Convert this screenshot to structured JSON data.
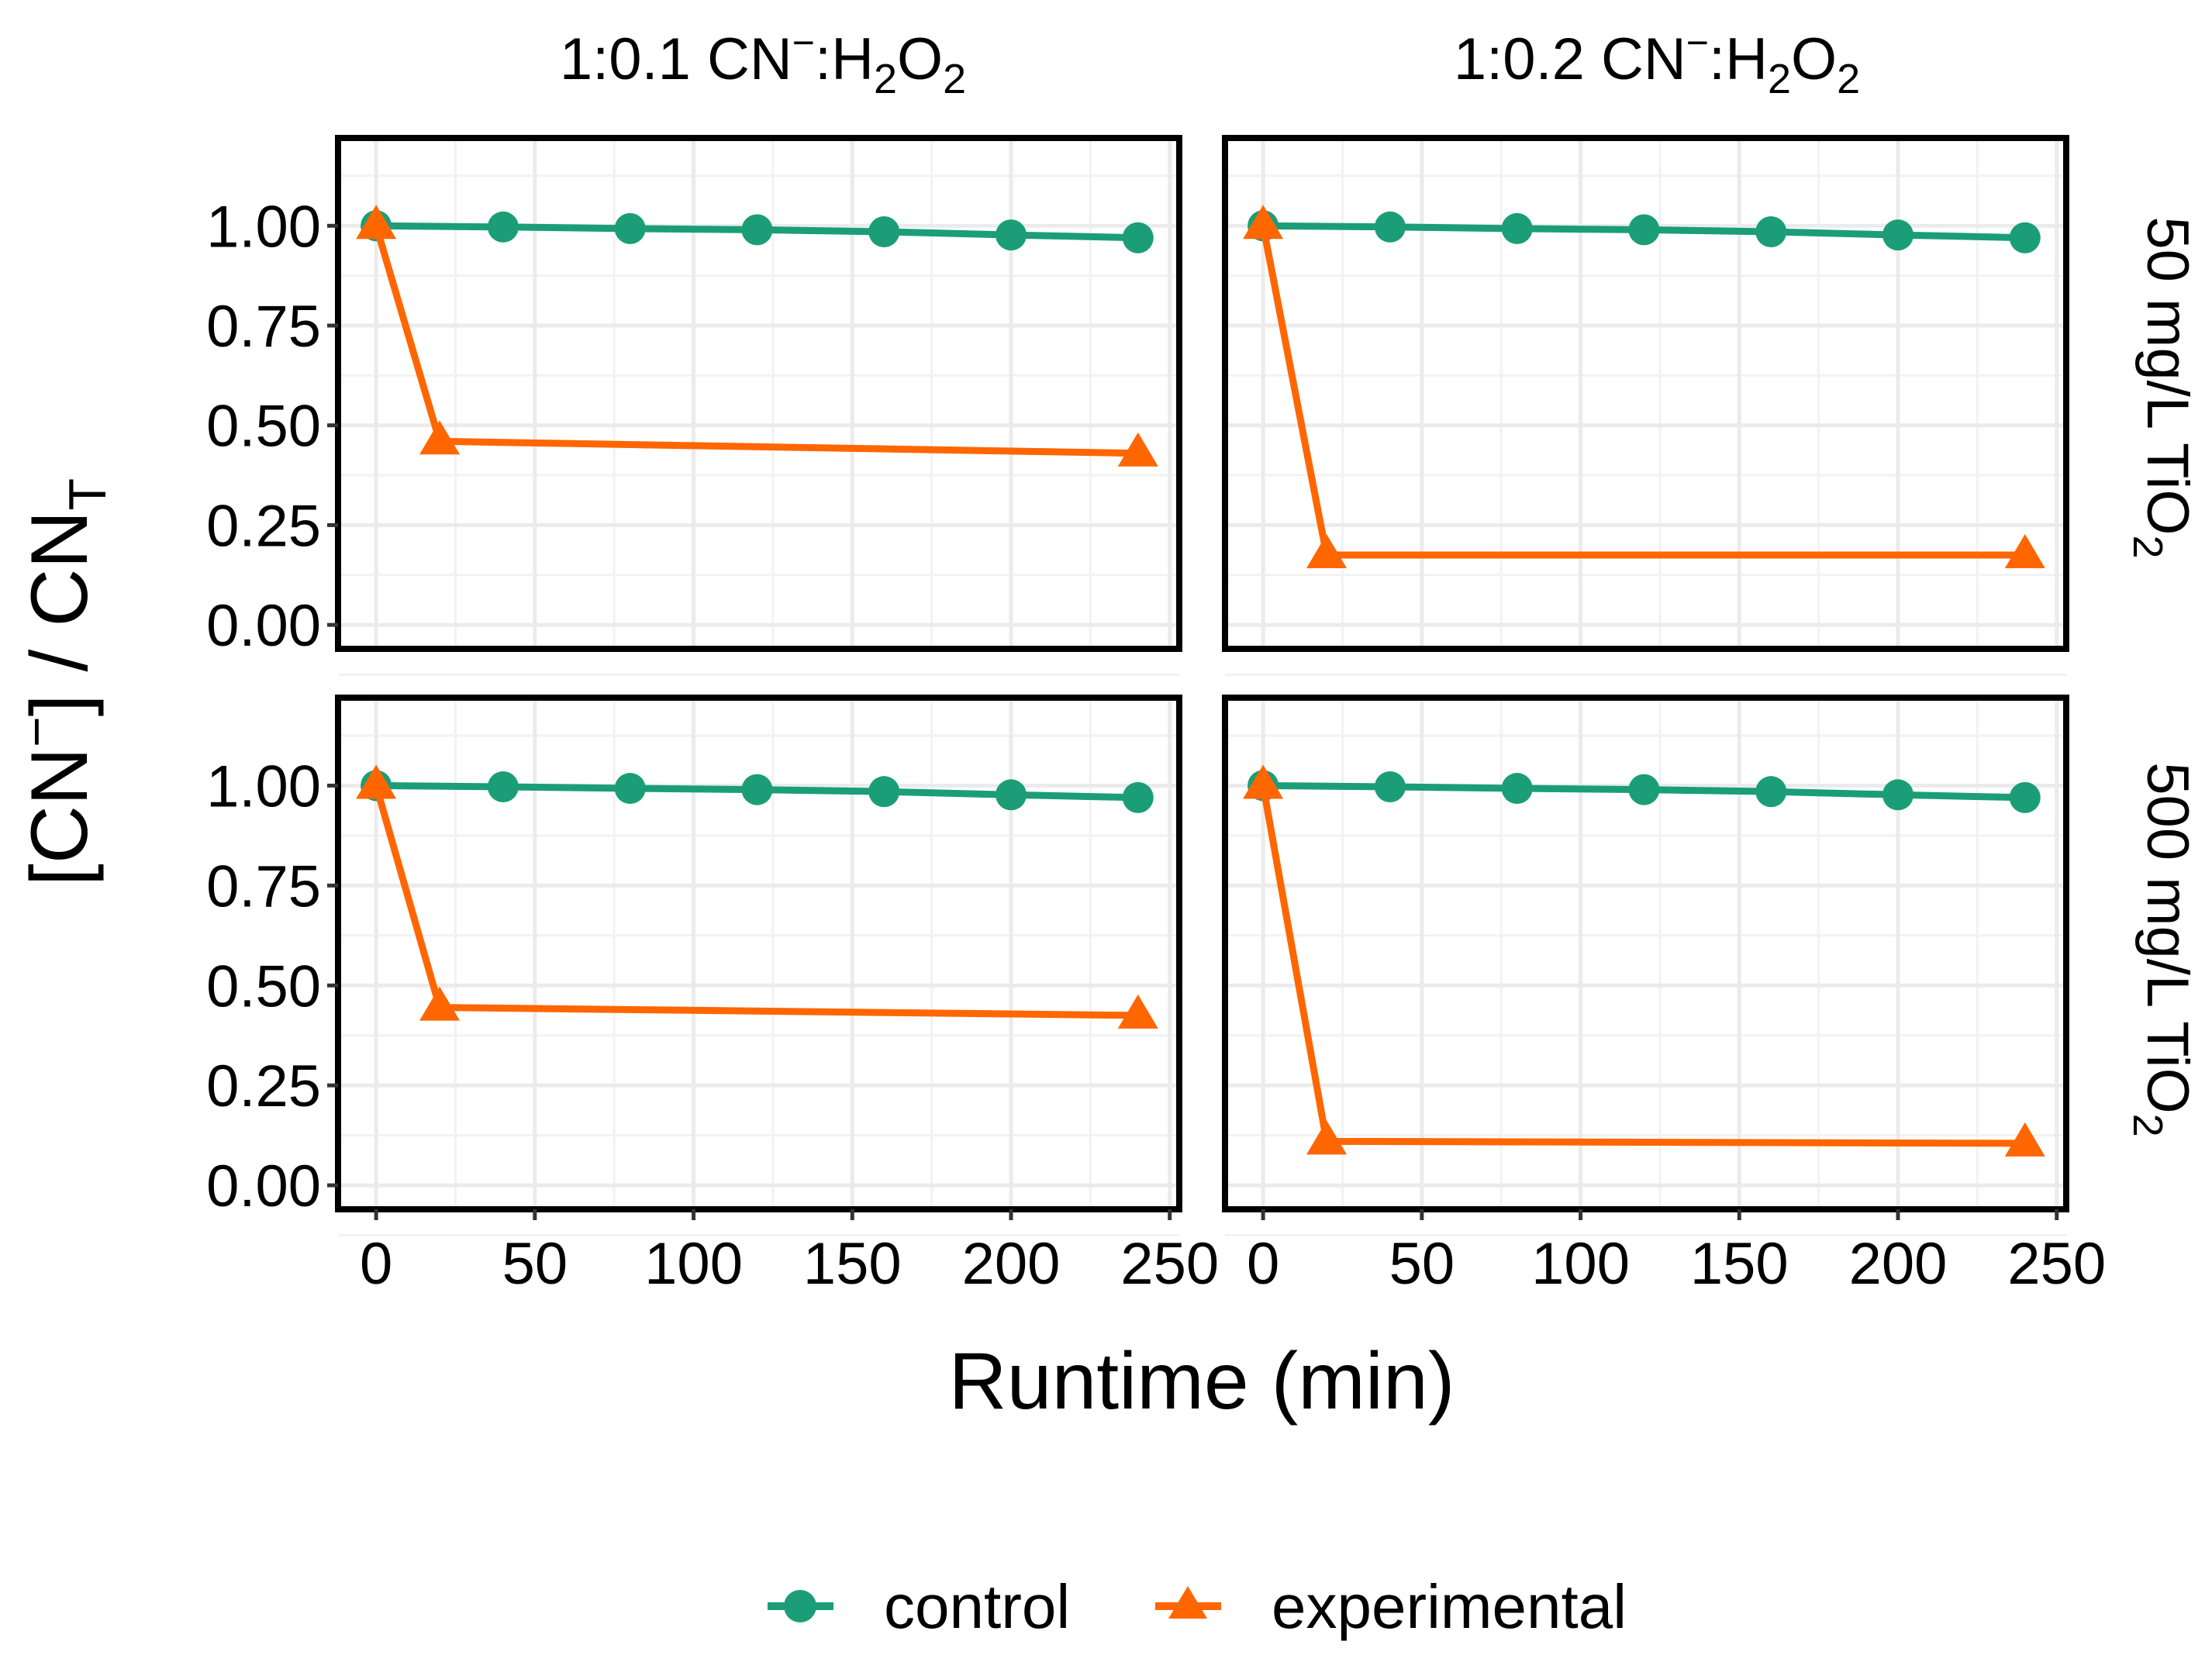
{
  "chart_data": {
    "type": "line",
    "facet_columns": [
      {
        "prefix": "1:0.1 CN",
        "sup": "−",
        "mid": ":H",
        "sub1": "2",
        "mid2": "O",
        "sub2": "2"
      },
      {
        "prefix": "1:0.2 CN",
        "sup": "−",
        "mid": ":H",
        "sub1": "2",
        "mid2": "O",
        "sub2": "2"
      }
    ],
    "facet_rows": [
      {
        "text": "50 mg/L TiO",
        "sub": "2"
      },
      {
        "text": "500 mg/L TiO",
        "sub": "2"
      }
    ],
    "xlabel": "Runtime (min)",
    "ylabel": {
      "part1": "[CN",
      "sup": "−",
      "part2": "] / CN",
      "sub": "T"
    },
    "xlim": [
      -12,
      253
    ],
    "ylim": [
      -0.06,
      1.22
    ],
    "x_ticks": [
      0,
      50,
      100,
      150,
      200,
      250
    ],
    "x_tick_labels": [
      "0",
      "50",
      "100",
      "150",
      "200",
      "250"
    ],
    "y_ticks": [
      0,
      0.25,
      0.5,
      0.75,
      1.0
    ],
    "y_tick_labels": [
      "0.00",
      "0.25",
      "0.50",
      "0.75",
      "1.00"
    ],
    "legend_position": "bottom",
    "series_styles": [
      {
        "name": "control",
        "color": "#1b9e77",
        "marker": "circle"
      },
      {
        "name": "experimental",
        "color": "#ff6600",
        "marker": "triangle"
      }
    ],
    "panels": [
      {
        "row": 0,
        "col": 0,
        "series": [
          {
            "name": "control",
            "x": [
              0,
              40,
              80,
              120,
              160,
              200,
              240
            ],
            "y": [
              1.0,
              0.997,
              0.993,
              0.99,
              0.985,
              0.977,
              0.97
            ]
          },
          {
            "name": "experimental",
            "x": [
              0,
              20,
              240
            ],
            "y": [
              1.0,
              0.46,
              0.43
            ],
            "err": [
              0,
              0.02,
              0.02
            ]
          }
        ]
      },
      {
        "row": 0,
        "col": 1,
        "series": [
          {
            "name": "control",
            "x": [
              0,
              40,
              80,
              120,
              160,
              200,
              240
            ],
            "y": [
              1.0,
              0.997,
              0.993,
              0.99,
              0.985,
              0.977,
              0.97
            ]
          },
          {
            "name": "experimental",
            "x": [
              0,
              20,
              240
            ],
            "y": [
              1.0,
              0.175,
              0.175
            ],
            "err": [
              0,
              0.01,
              0.03
            ]
          }
        ]
      },
      {
        "row": 1,
        "col": 0,
        "series": [
          {
            "name": "control",
            "x": [
              0,
              40,
              80,
              120,
              160,
              200,
              240
            ],
            "y": [
              1.0,
              0.997,
              0.993,
              0.99,
              0.985,
              0.977,
              0.97
            ]
          },
          {
            "name": "experimental",
            "x": [
              0,
              20,
              240
            ],
            "y": [
              1.0,
              0.445,
              0.425
            ],
            "err": [
              0,
              0.01,
              0.01
            ]
          }
        ]
      },
      {
        "row": 1,
        "col": 1,
        "series": [
          {
            "name": "control",
            "x": [
              0,
              40,
              80,
              120,
              160,
              200,
              240
            ],
            "y": [
              1.0,
              0.997,
              0.993,
              0.99,
              0.985,
              0.977,
              0.97
            ]
          },
          {
            "name": "experimental",
            "x": [
              0,
              20,
              240
            ],
            "y": [
              1.0,
              0.11,
              0.105
            ],
            "err": [
              0,
              0.005,
              0.005
            ]
          }
        ]
      }
    ]
  }
}
